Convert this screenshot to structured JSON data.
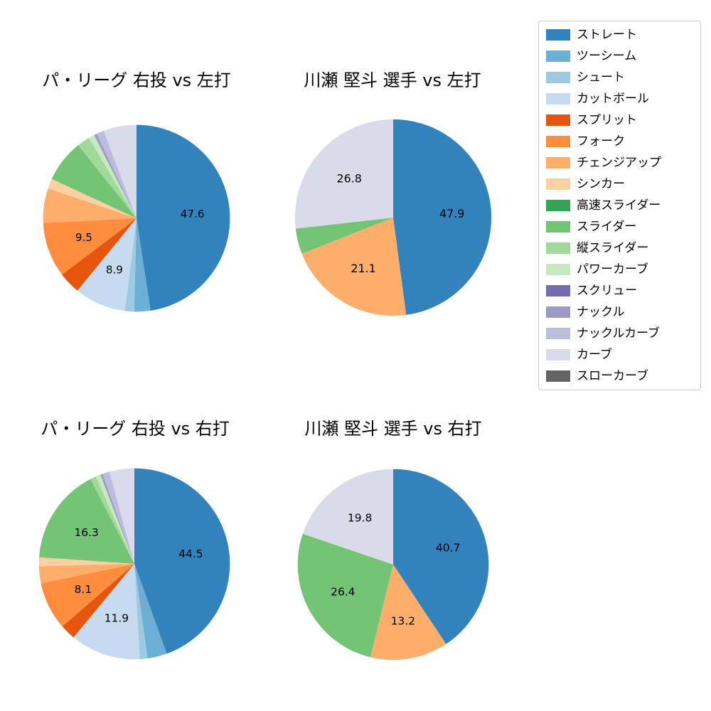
{
  "figure": {
    "background": "#ffffff"
  },
  "legend": {
    "edge_color": "#cccccc",
    "items": [
      {
        "label": "ストレート",
        "color": "#3182bd"
      },
      {
        "label": "ツーシーム",
        "color": "#6baed6"
      },
      {
        "label": "シュート",
        "color": "#9ecae1"
      },
      {
        "label": "カットボール",
        "color": "#c6dbef"
      },
      {
        "label": "スプリット",
        "color": "#e6550d"
      },
      {
        "label": "フォーク",
        "color": "#fd8d3c"
      },
      {
        "label": "チェンジアップ",
        "color": "#fdae6b"
      },
      {
        "label": "シンカー",
        "color": "#fdd0a2"
      },
      {
        "label": "高速スライダー",
        "color": "#31a354"
      },
      {
        "label": "スライダー",
        "color": "#74c476"
      },
      {
        "label": "縦スライダー",
        "color": "#a1d99b"
      },
      {
        "label": "パワーカーブ",
        "color": "#c7e9c0"
      },
      {
        "label": "スクリュー",
        "color": "#756bb1"
      },
      {
        "label": "ナックル",
        "color": "#9e9ac8"
      },
      {
        "label": "ナックルカーブ",
        "color": "#bcbddc"
      },
      {
        "label": "カーブ",
        "color": "#dadaeb"
      },
      {
        "label": "スローカーブ",
        "color": "#636363"
      }
    ]
  },
  "chart_data": [
    {
      "type": "pie",
      "title": "パ・リーグ 右投 vs 左打",
      "start_angle": "top",
      "direction": "clockwise",
      "pct_distance": 0.6,
      "label_threshold_pct": 8,
      "slices": [
        {
          "name": "ストレート",
          "value": 47.6,
          "labeled": true
        },
        {
          "name": "ツーシーム",
          "value": 2.8,
          "labeled": false
        },
        {
          "name": "シュート",
          "value": 1.6,
          "labeled": false
        },
        {
          "name": "カットボール",
          "value": 8.9,
          "labeled": true
        },
        {
          "name": "スプリット",
          "value": 3.8,
          "labeled": false
        },
        {
          "name": "フォーク",
          "value": 9.5,
          "labeled": true
        },
        {
          "name": "チェンジアップ",
          "value": 6.0,
          "labeled": false
        },
        {
          "name": "シンカー",
          "value": 1.7,
          "labeled": false
        },
        {
          "name": "スライダー",
          "value": 7.4,
          "labeled": false
        },
        {
          "name": "縦スライダー",
          "value": 2.2,
          "labeled": false
        },
        {
          "name": "パワーカーブ",
          "value": 1.0,
          "labeled": false
        },
        {
          "name": "ナックル",
          "value": 0.5,
          "labeled": false
        },
        {
          "name": "ナックルカーブ",
          "value": 1.3,
          "labeled": false
        },
        {
          "name": "カーブ",
          "value": 5.7,
          "labeled": false
        }
      ]
    },
    {
      "type": "pie",
      "title": "川瀬 堅斗 選手 vs 左打",
      "start_angle": "top",
      "direction": "clockwise",
      "pct_distance": 0.6,
      "label_threshold_pct": 8,
      "slices": [
        {
          "name": "ストレート",
          "value": 47.9,
          "labeled": true
        },
        {
          "name": "チェンジアップ",
          "value": 21.1,
          "labeled": true
        },
        {
          "name": "スライダー",
          "value": 4.2,
          "labeled": false
        },
        {
          "name": "カーブ",
          "value": 26.8,
          "labeled": true
        }
      ]
    },
    {
      "type": "pie",
      "title": "パ・リーグ 右投 vs 右打",
      "start_angle": "top",
      "direction": "clockwise",
      "pct_distance": 0.6,
      "label_threshold_pct": 8,
      "slices": [
        {
          "name": "ストレート",
          "value": 44.5,
          "labeled": true
        },
        {
          "name": "ツーシーム",
          "value": 3.3,
          "labeled": false
        },
        {
          "name": "シュート",
          "value": 1.3,
          "labeled": false
        },
        {
          "name": "カットボール",
          "value": 11.9,
          "labeled": true
        },
        {
          "name": "スプリット",
          "value": 2.6,
          "labeled": false
        },
        {
          "name": "フォーク",
          "value": 8.1,
          "labeled": true
        },
        {
          "name": "チェンジアップ",
          "value": 2.9,
          "labeled": false
        },
        {
          "name": "シンカー",
          "value": 1.5,
          "labeled": false
        },
        {
          "name": "スライダー",
          "value": 16.3,
          "labeled": true
        },
        {
          "name": "縦スライダー",
          "value": 1.0,
          "labeled": false
        },
        {
          "name": "パワーカーブ",
          "value": 0.8,
          "labeled": false
        },
        {
          "name": "ナックル",
          "value": 0.4,
          "labeled": false
        },
        {
          "name": "ナックルカーブ",
          "value": 1.2,
          "labeled": false
        },
        {
          "name": "カーブ",
          "value": 4.2,
          "labeled": false
        }
      ]
    },
    {
      "type": "pie",
      "title": "川瀬 堅斗 選手 vs 右打",
      "start_angle": "top",
      "direction": "clockwise",
      "pct_distance": 0.6,
      "label_threshold_pct": 8,
      "slices": [
        {
          "name": "ストレート",
          "value": 40.7,
          "labeled": true
        },
        {
          "name": "チェンジアップ",
          "value": 13.2,
          "labeled": true
        },
        {
          "name": "スライダー",
          "value": 26.4,
          "labeled": true
        },
        {
          "name": "カーブ",
          "value": 19.8,
          "labeled": true
        }
      ]
    }
  ]
}
